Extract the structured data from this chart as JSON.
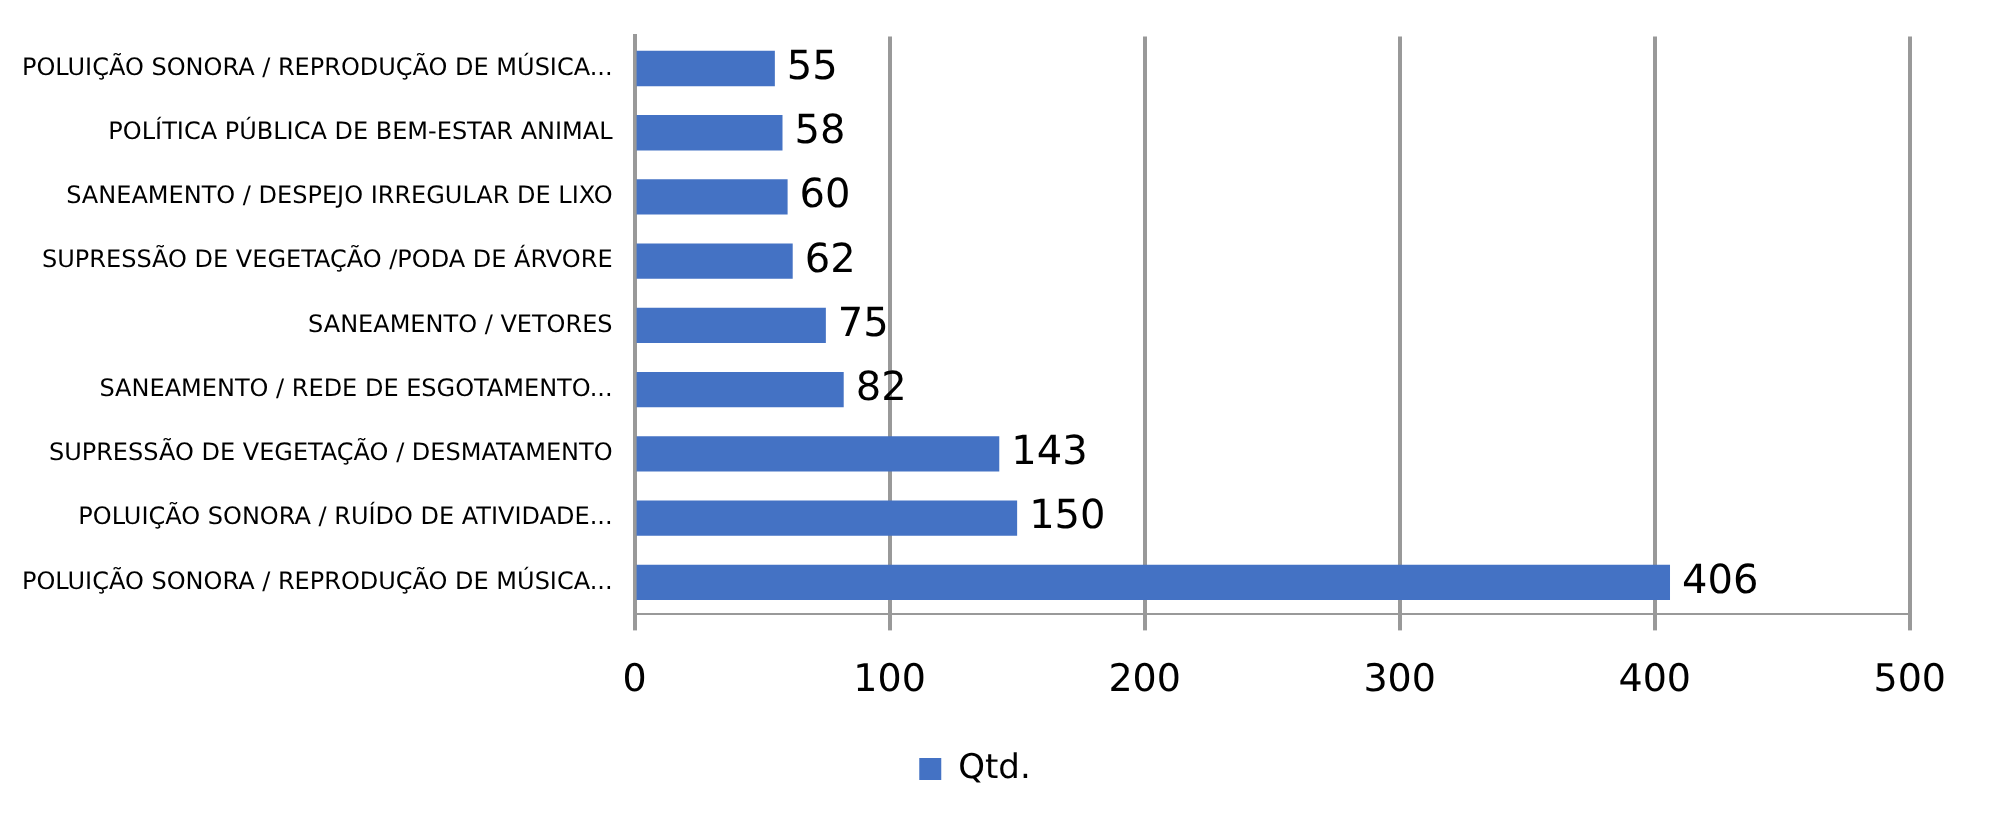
{
  "chart_data": {
    "type": "bar",
    "orientation": "horizontal",
    "categories": [
      "POLUIÇÃO SONORA / REPRODUÇÃO DE MÚSICA...",
      "POLÍTICA PÚBLICA DE BEM-ESTAR ANIMAL",
      "SANEAMENTO / DESPEJO IRREGULAR DE LIXO",
      "SUPRESSÃO DE VEGETAÇÃO /PODA DE ÁRVORE",
      "SANEAMENTO / VETORES",
      "SANEAMENTO / REDE DE ESGOTAMENTO...",
      "SUPRESSÃO DE VEGETAÇÃO / DESMATAMENTO",
      "POLUIÇÃO SONORA / RUÍDO DE ATIVIDADE...",
      "POLUIÇÃO SONORA / REPRODUÇÃO DE MÚSICA..."
    ],
    "series": [
      {
        "name": "Qtd.",
        "color": "#4472c4",
        "values": [
          55,
          58,
          60,
          62,
          75,
          82,
          143,
          150,
          406
        ]
      }
    ],
    "xlim": [
      0,
      500
    ],
    "xticks": [
      0,
      100,
      200,
      300,
      400,
      500
    ],
    "grid": "x",
    "legend": "bottom",
    "data_labels": true
  }
}
